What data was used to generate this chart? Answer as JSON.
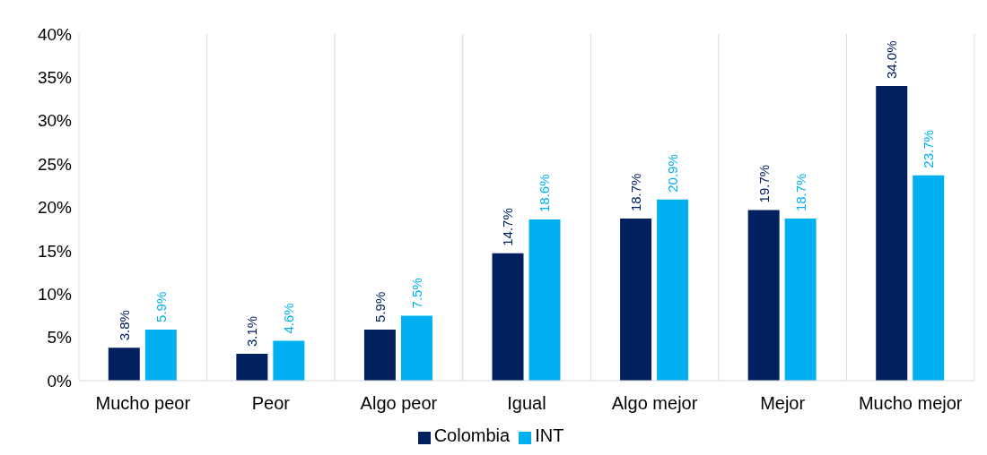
{
  "chart_data": {
    "type": "bar",
    "categories": [
      "Mucho peor",
      "Peor",
      "Algo peor",
      "Igual",
      "Algo mejor",
      "Mejor",
      "Mucho mejor"
    ],
    "series": [
      {
        "name": "Colombia",
        "color": "#002060",
        "values": [
          3.8,
          3.1,
          5.9,
          14.7,
          18.7,
          19.7,
          34.0
        ],
        "value_labels": [
          "3.8%",
          "3.1%",
          "5.9%",
          "14.7%",
          "18.7%",
          "19.7%",
          "34.0%"
        ]
      },
      {
        "name": "INT",
        "color": "#00b0f0",
        "values": [
          5.9,
          4.6,
          7.5,
          18.6,
          20.9,
          18.7,
          23.7
        ],
        "value_labels": [
          "5.9%",
          "4.6%",
          "7.5%",
          "18.6%",
          "20.9%",
          "18.7%",
          "23.7%"
        ]
      }
    ],
    "ylim": [
      0,
      40
    ],
    "yticks": [
      {
        "value": 0,
        "label": "0%"
      },
      {
        "value": 5,
        "label": "5%"
      },
      {
        "value": 10,
        "label": "10%"
      },
      {
        "value": 15,
        "label": "15%"
      },
      {
        "value": 20,
        "label": "20%"
      },
      {
        "value": 25,
        "label": "25%"
      },
      {
        "value": 30,
        "label": "30%"
      },
      {
        "value": 35,
        "label": "35%"
      },
      {
        "value": 40,
        "label": "40%"
      }
    ],
    "grid": "x",
    "legend": "bottom"
  }
}
